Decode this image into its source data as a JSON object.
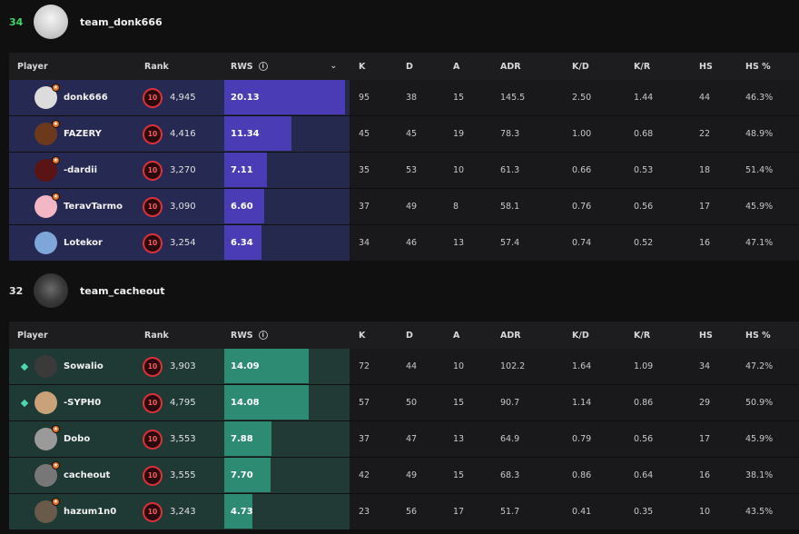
{
  "colors": {
    "team1_row": "#262a52",
    "team1_track": "#26294e",
    "team1_bar": "#4a3cb4",
    "team2_row": "#1f3935",
    "team2_track": "#223a36",
    "team2_bar": "#2d8b73",
    "team1_rank": "#3ed66a",
    "team2_rank": "#e6e6e6"
  },
  "columns": {
    "player": "Player",
    "rank": "Rank",
    "rws": "RWS",
    "k": "K",
    "d": "D",
    "a": "A",
    "adr": "ADR",
    "kd": "K/D",
    "kr": "K/R",
    "hs": "HS",
    "hsp": "HS %"
  },
  "icons": {
    "info": "info-icon",
    "sort": "chevron-down-icon",
    "rank": "skill-level-10-icon"
  },
  "teams": [
    {
      "rank": "34",
      "name": "team_donk666",
      "players": [
        {
          "name": "donk666",
          "level": "10",
          "elo": "4,945",
          "rws": "20.13",
          "rws_fraction": 1.0,
          "k": "95",
          "d": "38",
          "a": "15",
          "adr": "145.5",
          "kd": "2.50",
          "kr": "1.44",
          "hs": "44",
          "hsp": "46.3%",
          "avatar": "#dcdcdc",
          "badge": true
        },
        {
          "name": "FAZERY",
          "level": "10",
          "elo": "4,416",
          "rws": "11.34",
          "rws_fraction": 0.56,
          "k": "45",
          "d": "45",
          "a": "19",
          "adr": "78.3",
          "kd": "1.00",
          "kr": "0.68",
          "hs": "22",
          "hsp": "48.9%",
          "avatar": "#6b3a1c",
          "badge": true
        },
        {
          "name": "-dardii",
          "level": "10",
          "elo": "3,270",
          "rws": "7.11",
          "rws_fraction": 0.35,
          "k": "35",
          "d": "53",
          "a": "10",
          "adr": "61.3",
          "kd": "0.66",
          "kr": "0.53",
          "hs": "18",
          "hsp": "51.4%",
          "avatar": "#5a1414",
          "badge": true
        },
        {
          "name": "TeravTarmo",
          "level": "10",
          "elo": "3,090",
          "rws": "6.60",
          "rws_fraction": 0.33,
          "k": "37",
          "d": "49",
          "a": "8",
          "adr": "58.1",
          "kd": "0.76",
          "kr": "0.56",
          "hs": "17",
          "hsp": "45.9%",
          "avatar": "#f2b6c4",
          "badge": true
        },
        {
          "name": "Lotekor",
          "level": "10",
          "elo": "3,254",
          "rws": "6.34",
          "rws_fraction": 0.31,
          "k": "34",
          "d": "46",
          "a": "13",
          "adr": "57.4",
          "kd": "0.74",
          "kr": "0.52",
          "hs": "16",
          "hsp": "47.1%",
          "avatar": "#7fa6d8",
          "badge": false
        }
      ]
    },
    {
      "rank": "32",
      "name": "team_cacheout",
      "players": [
        {
          "name": "Sowalio",
          "level": "10",
          "elo": "3,903",
          "rws": "14.09",
          "rws_fraction": 0.7,
          "k": "72",
          "d": "44",
          "a": "10",
          "adr": "102.2",
          "kd": "1.64",
          "kr": "1.09",
          "hs": "34",
          "hsp": "47.2%",
          "avatar": "#3a3a3a",
          "badge": false,
          "diamond": true
        },
        {
          "name": "-SYPH0",
          "level": "10",
          "elo": "4,795",
          "rws": "14.08",
          "rws_fraction": 0.7,
          "k": "57",
          "d": "50",
          "a": "15",
          "adr": "90.7",
          "kd": "1.14",
          "kr": "0.86",
          "hs": "29",
          "hsp": "50.9%",
          "avatar": "#c9a27a",
          "badge": false,
          "diamond": true
        },
        {
          "name": "Dobo",
          "level": "10",
          "elo": "3,553",
          "rws": "7.88",
          "rws_fraction": 0.39,
          "k": "37",
          "d": "47",
          "a": "13",
          "adr": "64.9",
          "kd": "0.79",
          "kr": "0.56",
          "hs": "17",
          "hsp": "45.9%",
          "avatar": "#9a9a9a",
          "badge": true
        },
        {
          "name": "cacheout",
          "level": "10",
          "elo": "3,555",
          "rws": "7.70",
          "rws_fraction": 0.38,
          "k": "42",
          "d": "49",
          "a": "15",
          "adr": "68.3",
          "kd": "0.86",
          "kr": "0.64",
          "hs": "16",
          "hsp": "38.1%",
          "avatar": "#777777",
          "badge": true
        },
        {
          "name": "hazum1n0",
          "level": "10",
          "elo": "3,243",
          "rws": "4.73",
          "rws_fraction": 0.23,
          "k": "23",
          "d": "56",
          "a": "17",
          "adr": "51.7",
          "kd": "0.41",
          "kr": "0.35",
          "hs": "10",
          "hsp": "43.5%",
          "avatar": "#6a5a4a",
          "badge": true
        }
      ]
    }
  ]
}
